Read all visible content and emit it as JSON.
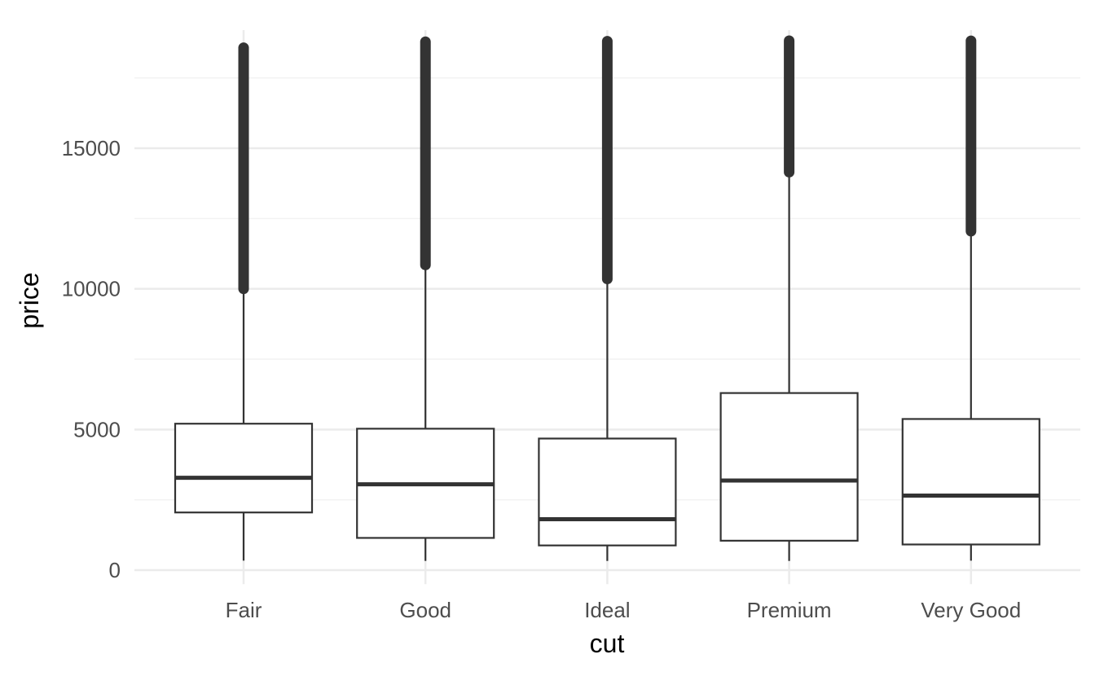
{
  "chart_data": {
    "type": "boxplot",
    "title": "",
    "xlabel": "cut",
    "ylabel": "price",
    "ylim": [
      -500,
      19200
    ],
    "y_ticks": [
      0,
      5000,
      10000,
      15000
    ],
    "y_tick_labels": [
      "0",
      "5000",
      "10000",
      "15000"
    ],
    "grid": true,
    "theme": "minimal",
    "colors": {
      "box_stroke": "#333333",
      "major_grid": "#ebebeb",
      "minor_grid": "#f2f2f2",
      "tick_text": "#4d4d4d",
      "axis_title": "#000000"
    },
    "categories": [
      "Fair",
      "Good",
      "Ideal",
      "Premium",
      "Very Good"
    ],
    "boxes": [
      {
        "category": "Fair",
        "whisker_low": 337,
        "q1": 2050,
        "median": 3282,
        "q3": 5206,
        "whisker_high": 9960,
        "outlier_min": 10000,
        "outlier_max": 18574
      },
      {
        "category": "Good",
        "whisker_low": 327,
        "q1": 1145,
        "median": 3050,
        "q3": 5028,
        "whisker_high": 10850,
        "outlier_min": 10850,
        "outlier_max": 18788
      },
      {
        "category": "Ideal",
        "whisker_low": 326,
        "q1": 878,
        "median": 1810,
        "q3": 4678,
        "whisker_high": 10350,
        "outlier_min": 10350,
        "outlier_max": 18806
      },
      {
        "category": "Premium",
        "whisker_low": 326,
        "q1": 1046,
        "median": 3185,
        "q3": 6296,
        "whisker_high": 14150,
        "outlier_min": 14150,
        "outlier_max": 18823
      },
      {
        "category": "Very Good",
        "whisker_low": 336,
        "q1": 912,
        "median": 2648,
        "q3": 5373,
        "whisker_high": 12050,
        "outlier_min": 12050,
        "outlier_max": 18818
      }
    ]
  }
}
